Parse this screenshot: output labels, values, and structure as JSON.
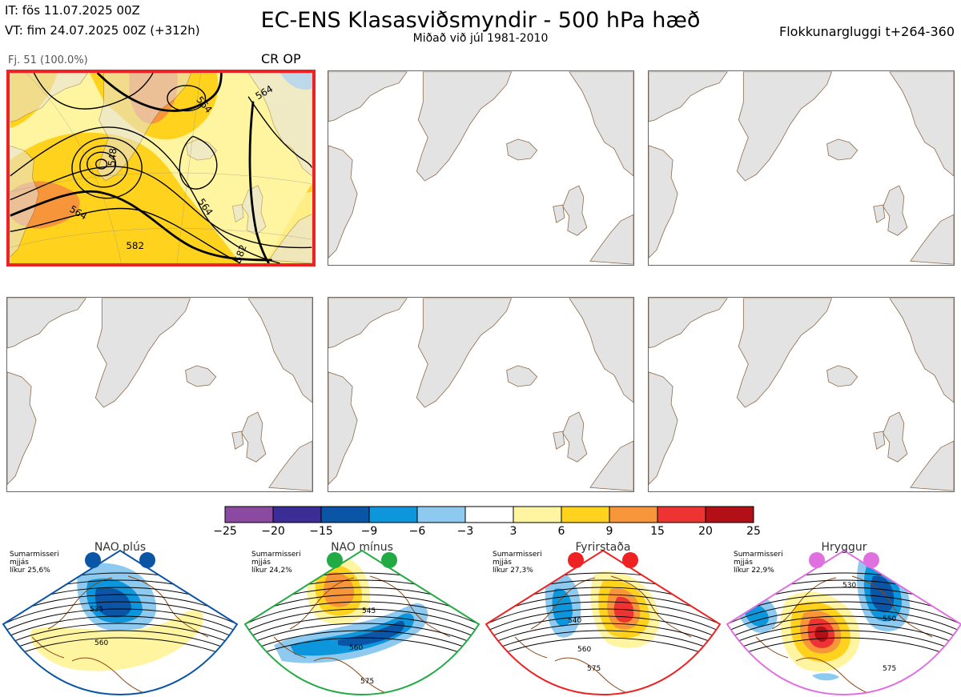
{
  "header": {
    "it_line": "IT: fös 11.07.2025 00Z",
    "vt_line": "VT: fim 24.07.2025 00Z  (+312h)",
    "title": "EC-ENS Klasasviðsmyndir - 500 hPa hæð",
    "subtitle": "Miðað við júl 1981-2010",
    "window": "Flokkunargluggi t+264-360"
  },
  "cluster": {
    "label": "Fj. 51 (100.0%)",
    "tag": "CR OP",
    "contour_labels": [
      "564",
      "548",
      "564",
      "564",
      "564",
      "582",
      "582"
    ]
  },
  "colorbar": {
    "ticks": [
      "−25",
      "−20",
      "−15",
      "−9",
      "−6",
      "−3",
      "3",
      "6",
      "9",
      "15",
      "20",
      "25"
    ],
    "colors": [
      "#8a4aa0",
      "#3b2d95",
      "#0a55a5",
      "#0d96dc",
      "#8ec9ef",
      "#ffffff",
      "#fff4a0",
      "#ffd21e",
      "#f7953a",
      "#ee3333",
      "#b21016"
    ]
  },
  "regimes": [
    {
      "title": "NAO plús",
      "season": "Sumarmisseri",
      "kind": "mjjás",
      "prob": "líkur 25,6%",
      "color": "#0a55a5",
      "labels": [
        "535",
        "560"
      ]
    },
    {
      "title": "NAO mínus",
      "season": "Sumarmisseri",
      "kind": "mjjás",
      "prob": "líkur 24,2%",
      "color": "#22aa44",
      "labels": [
        "545",
        "560",
        "575"
      ]
    },
    {
      "title": "Fyrirstaða",
      "season": "Sumarmisseri",
      "kind": "mjjás",
      "prob": "líkur 27,3%",
      "color": "#ee2222",
      "labels": [
        "540",
        "560",
        "575"
      ]
    },
    {
      "title": "Hryggur",
      "season": "Sumarmisseri",
      "kind": "mjjás",
      "prob": "líkur 22,9%",
      "color": "#e070e0",
      "labels": [
        "530",
        "550",
        "575"
      ]
    }
  ]
}
